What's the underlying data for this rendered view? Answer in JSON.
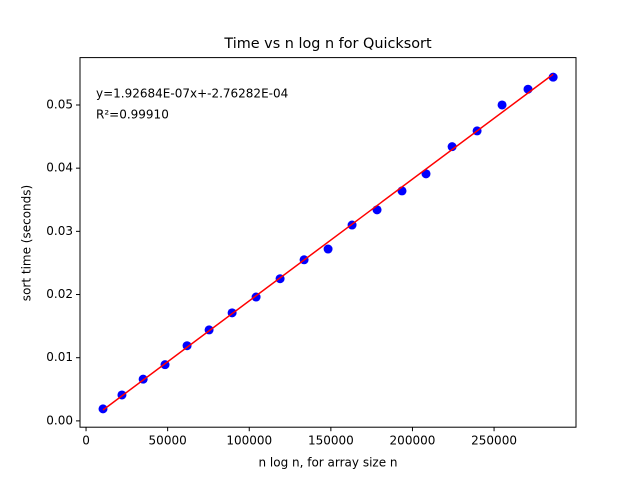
{
  "chart_data": {
    "type": "scatter",
    "title": "Time vs n log n for Quicksort",
    "xlabel": "n log n, for array size n",
    "ylabel": "sort time (seconds)",
    "x": [
      10400,
      22000,
      35000,
      48400,
      61900,
      75400,
      89500,
      104200,
      118900,
      133600,
      148300,
      163000,
      178300,
      193600,
      208300,
      224300,
      239600,
      254900,
      270800,
      286200
    ],
    "series": [
      {
        "color": "#0000ff",
        "values": [
          0.0019,
          0.0041,
          0.0066,
          0.0089,
          0.0119,
          0.0144,
          0.0171,
          0.0196,
          0.0225,
          0.0255,
          0.0272,
          0.031,
          0.0334,
          0.0364,
          0.0391,
          0.0434,
          0.0459,
          0.05,
          0.0525,
          0.0544
        ]
      }
    ],
    "fit": {
      "slope": 1.92684e-07,
      "intercept": -0.000276282,
      "color": "#ff0000"
    },
    "annotations": [
      "y=1.92684E-07x+-2.76282E-04",
      "R²=0.99910"
    ],
    "xlim": [
      -3700,
      300200
    ],
    "ylim": [
      -0.001,
      0.0575
    ],
    "xticks": [
      0,
      50000,
      100000,
      150000,
      200000,
      250000
    ],
    "yticks": [
      {
        "value": 0,
        "label": "0.00"
      },
      0.01,
      0.02,
      0.03,
      0.04,
      0.05
    ],
    "grid": false
  }
}
